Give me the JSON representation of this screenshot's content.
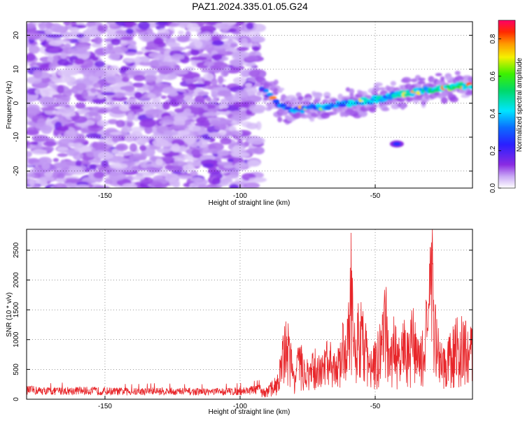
{
  "title": "PAZ1.2024.335.01.05.G24",
  "chart_data": [
    {
      "type": "heatmap",
      "xlabel": "Height of straight line (km)",
      "ylabel": "Frequency (Hz)",
      "xlim": [
        -179,
        -14
      ],
      "ylim": [
        -25,
        24
      ],
      "xticks": [
        -150,
        -100,
        -50
      ],
      "yticks": [
        -20,
        -10,
        0,
        10,
        20
      ],
      "colorbar": {
        "label": "Normalized spectral amplitude",
        "range": [
          0,
          0.9
        ],
        "ticks": [
          0,
          0.2,
          0.4,
          0.6,
          0.8
        ],
        "colormap": "rainbow (white-purple-blue-cyan-green-yellow-red-magenta)"
      },
      "features": {
        "noise_region_x": [
          -179,
          -93
        ],
        "signal_ridge": [
          {
            "x": -90,
            "f": 3
          },
          {
            "x": -85,
            "f": -1
          },
          {
            "x": -80,
            "f": -2
          },
          {
            "x": -70,
            "f": -1
          },
          {
            "x": -60,
            "f": 0
          },
          {
            "x": -50,
            "f": 1
          },
          {
            "x": -40,
            "f": 3
          },
          {
            "x": -30,
            "f": 4
          },
          {
            "x": -20,
            "f": 5
          },
          {
            "x": -14,
            "f": 5
          }
        ],
        "isolated_blob": {
          "x": -42,
          "f": -12
        }
      }
    },
    {
      "type": "line",
      "xlabel": "Height of straight line (km)",
      "ylabel": "SNR (10 * v/v)",
      "xlim": [
        -179,
        -14
      ],
      "ylim": [
        0,
        2850
      ],
      "xticks": [
        -150,
        -100,
        -50
      ],
      "yticks": [
        0,
        500,
        1000,
        1500,
        2000,
        2500
      ],
      "color": "#e8262a",
      "series": [
        {
          "x": [
            -179,
            -170,
            -160,
            -150,
            -140,
            -130,
            -120,
            -110,
            -100,
            -95,
            -90,
            -87,
            -85,
            -83,
            -80,
            -78,
            -75,
            -72,
            -70,
            -67,
            -65,
            -62,
            -60,
            -59,
            -58,
            -56,
            -54,
            -52,
            -50,
            -48,
            -46,
            -45,
            -43,
            -41,
            -40,
            -38,
            -36,
            -34,
            -32,
            -30,
            -29,
            -28,
            -27,
            -25,
            -23,
            -21,
            -19,
            -17,
            -15,
            -14
          ],
          "values": [
            170,
            150,
            160,
            150,
            140,
            150,
            140,
            140,
            150,
            170,
            190,
            350,
            700,
            1450,
            550,
            900,
            600,
            800,
            650,
            1000,
            700,
            1200,
            1500,
            2700,
            1400,
            1700,
            1300,
            800,
            900,
            1200,
            1900,
            800,
            1300,
            900,
            1350,
            1000,
            1550,
            900,
            1200,
            2200,
            2800,
            1500,
            1400,
            800,
            1000,
            1200,
            1300,
            1250,
            1100,
            1200
          ]
        }
      ]
    }
  ]
}
